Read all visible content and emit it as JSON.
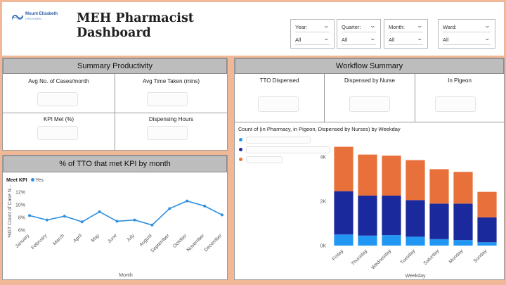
{
  "header": {
    "logo_name": "Mount Elizabeth",
    "logo_sub": "ORCHARD",
    "title": "MEH Pharmacist Dashboard"
  },
  "filters": [
    {
      "label": "Year:",
      "value": "All"
    },
    {
      "label": "Quarter:",
      "value": "All"
    },
    {
      "label": "Month:",
      "value": "All"
    },
    {
      "label": "Ward:",
      "value": "All"
    }
  ],
  "summary": {
    "title": "Summary Productivity",
    "cards": [
      "Avg No. of Cases/month",
      "Avg Time Taken (mins)",
      "KPI Met (%)",
      "Dispensing Hours"
    ]
  },
  "workflow": {
    "title": "Workflow Summary",
    "cards": [
      "TTO Dispensed",
      "Dispensed by Nurse",
      "In Pigeon"
    ]
  },
  "kpi_chart": {
    "title": "% of TTO that met KPI by month",
    "legend_title": "Meet KPI",
    "legend_item": "Yes",
    "ylabel": "%GT Count of Case N...",
    "xlabel": "Month"
  },
  "stack_chart": {
    "title": "Count of (in Pharmacy, in Pigeon, Dispensed by Nurses) by Weekday",
    "xlabel": "Weekday"
  },
  "colors": {
    "line": "#2e8fe0",
    "bar_light": "#2196f3",
    "bar_dark": "#1a2a9c",
    "bar_orange": "#e8703a",
    "legend_dot1": "#2196f3",
    "legend_dot2": "#1a2a9c",
    "legend_dot3": "#e8703a"
  },
  "chart_data": [
    {
      "type": "line",
      "categories": [
        "January",
        "February",
        "March",
        "April",
        "May",
        "June",
        "July",
        "August",
        "September",
        "October",
        "November",
        "December"
      ],
      "series": [
        {
          "name": "Yes",
          "values": [
            8.3,
            7.6,
            8.2,
            7.3,
            8.9,
            7.4,
            7.6,
            6.8,
            9.4,
            10.6,
            9.8,
            8.4
          ]
        }
      ],
      "yticks": [
        "12%",
        "10%",
        "8%",
        "6%"
      ],
      "ylim": [
        6,
        12
      ],
      "xlabel": "Month",
      "ylabel": "%GT Count of Case N...",
      "grid": false
    },
    {
      "type": "bar",
      "stacked": true,
      "categories": [
        "Friday",
        "Thursday",
        "Wednesday",
        "Tuesday",
        "Saturday",
        "Monday",
        "Sunday"
      ],
      "series": [
        {
          "values": [
            500,
            450,
            470,
            400,
            290,
            250,
            150
          ]
        },
        {
          "values": [
            1950,
            1800,
            1780,
            1650,
            1600,
            1640,
            1120
          ]
        },
        {
          "values": [
            2000,
            1850,
            1800,
            1800,
            1550,
            1430,
            1150
          ]
        }
      ],
      "yticks": [
        "4K",
        "2K",
        "0K"
      ],
      "ylim": [
        0,
        4500
      ],
      "xlabel": "Weekday"
    }
  ]
}
